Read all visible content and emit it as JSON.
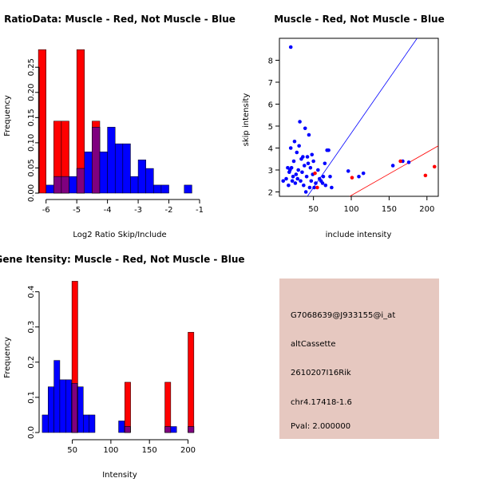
{
  "chart_data": [
    {
      "type": "bar",
      "title": "RatioData: Muscle - Red, Not Muscle - Blue",
      "xlabel": "Log2 Ratio Skip/Include",
      "ylabel": "Frequency",
      "xlim": [
        -6.2,
        -1.0
      ],
      "ylim": [
        0,
        0.29
      ],
      "xticks": [
        -6,
        -5,
        -4,
        -3,
        -2,
        -1
      ],
      "xtick_labels": [
        "-6",
        "-5",
        "-4",
        "-3",
        "-2",
        "-1"
      ],
      "yticks": [
        0.0,
        0.05,
        0.1,
        0.15,
        0.2,
        0.25
      ],
      "ytick_labels": [
        "0.00",
        "0.05",
        "0.10",
        "0.15",
        "0.20",
        "0.25"
      ],
      "bin_width": 0.25,
      "series": [
        {
          "name": "Muscle",
          "color": "#ff0000",
          "bins": [
            [
              -6.25,
              0.285
            ],
            [
              -5.75,
              0.143
            ],
            [
              -5.5,
              0.143
            ],
            [
              -5.0,
              0.285
            ],
            [
              -4.5,
              0.143
            ]
          ]
        },
        {
          "name": "Not Muscle",
          "color": "#0000ff",
          "bins": [
            [
              -6.0,
              0.016
            ],
            [
              -5.75,
              0.033
            ],
            [
              -5.5,
              0.033
            ],
            [
              -5.25,
              0.033
            ],
            [
              -5.0,
              0.049
            ],
            [
              -4.75,
              0.082
            ],
            [
              -4.5,
              0.131
            ],
            [
              -4.25,
              0.082
            ],
            [
              -4.0,
              0.131
            ],
            [
              -3.75,
              0.098
            ],
            [
              -3.5,
              0.098
            ],
            [
              -3.25,
              0.033
            ],
            [
              -3.0,
              0.066
            ],
            [
              -2.75,
              0.049
            ],
            [
              -2.5,
              0.016
            ],
            [
              -2.25,
              0.016
            ],
            [
              -1.5,
              0.016
            ]
          ]
        }
      ]
    },
    {
      "type": "scatter",
      "title": "Muscle - Red, Not Muscle - Blue",
      "xlabel": "include intensity",
      "ylabel": "skip intensity",
      "xlim": [
        5,
        215
      ],
      "ylim": [
        1.8,
        9.0
      ],
      "xticks": [
        50,
        100,
        150,
        200
      ],
      "xtick_labels": [
        "50",
        "100",
        "150",
        "200"
      ],
      "yticks": [
        2,
        3,
        4,
        5,
        6,
        7,
        8
      ],
      "ytick_labels": [
        "2",
        "3",
        "4",
        "5",
        "6",
        "7",
        "8"
      ],
      "lines": [
        {
          "name": "blue-diagonal",
          "color": "#0000ff",
          "points": [
            [
              42,
              1.8
            ],
            [
              187,
              9.0
            ]
          ]
        },
        {
          "name": "red-diagonal",
          "color": "#ff0000",
          "points": [
            [
              98,
              1.8
            ],
            [
              215,
              4.1
            ]
          ]
        }
      ],
      "series": [
        {
          "name": "Muscle",
          "color": "#ff0000",
          "points": [
            [
              52,
              2.85
            ],
            [
              55,
              2.2
            ],
            [
              101,
              2.65
            ],
            [
              165,
              3.4
            ],
            [
              198,
              2.75
            ],
            [
              210,
              3.15
            ]
          ]
        },
        {
          "name": "Not Muscle",
          "color": "#0000ff",
          "points": [
            [
              20,
              8.6
            ],
            [
              10,
              2.5
            ],
            [
              14,
              2.6
            ],
            [
              16,
              3.1
            ],
            [
              17,
              2.3
            ],
            [
              18,
              2.9
            ],
            [
              19,
              3.0
            ],
            [
              20,
              4.0
            ],
            [
              21,
              3.1
            ],
            [
              22,
              2.5
            ],
            [
              23,
              2.7
            ],
            [
              24,
              3.4
            ],
            [
              25,
              4.3
            ],
            [
              26,
              2.4
            ],
            [
              27,
              2.8
            ],
            [
              28,
              3.8
            ],
            [
              29,
              2.6
            ],
            [
              30,
              3.0
            ],
            [
              31,
              4.1
            ],
            [
              32,
              5.2
            ],
            [
              33,
              2.5
            ],
            [
              34,
              3.5
            ],
            [
              35,
              2.9
            ],
            [
              36,
              3.6
            ],
            [
              37,
              2.3
            ],
            [
              38,
              3.2
            ],
            [
              39,
              4.9
            ],
            [
              40,
              2.0
            ],
            [
              41,
              2.7
            ],
            [
              42,
              3.6
            ],
            [
              43,
              3.3
            ],
            [
              44,
              4.6
            ],
            [
              45,
              2.2
            ],
            [
              46,
              3.1
            ],
            [
              47,
              2.5
            ],
            [
              48,
              3.7
            ],
            [
              49,
              2.8
            ],
            [
              50,
              3.4
            ],
            [
              51,
              2.2
            ],
            [
              53,
              2.4
            ],
            [
              56,
              3.0
            ],
            [
              58,
              2.6
            ],
            [
              60,
              2.5
            ],
            [
              62,
              2.4
            ],
            [
              63,
              2.7
            ],
            [
              65,
              3.3
            ],
            [
              66,
              2.3
            ],
            [
              68,
              3.9
            ],
            [
              70,
              3.9
            ],
            [
              72,
              2.7
            ],
            [
              74,
              2.2
            ],
            [
              96,
              2.95
            ],
            [
              110,
              2.7
            ],
            [
              116,
              2.85
            ],
            [
              155,
              3.2
            ],
            [
              168,
              3.4
            ],
            [
              176,
              3.35
            ]
          ]
        }
      ]
    },
    {
      "type": "bar",
      "title": "Gene Itensity: Muscle - Red, Not Muscle - Blue",
      "xlabel": "Intensity",
      "ylabel": "Frequency",
      "xlim": [
        8,
        215
      ],
      "ylim": [
        0,
        0.44
      ],
      "xticks": [
        50,
        100,
        150,
        200
      ],
      "xtick_labels": [
        "50",
        "100",
        "150",
        "200"
      ],
      "yticks": [
        0.0,
        0.1,
        0.2,
        0.3,
        0.4
      ],
      "ytick_labels": [
        "0.0",
        "0.1",
        "0.2",
        "0.3",
        "0.4"
      ],
      "bin_width": 7.6,
      "series": [
        {
          "name": "Muscle",
          "color": "#ff0000",
          "bins": [
            [
              49.5,
              0.43
            ],
            [
              118,
              0.143
            ],
            [
              170,
              0.143
            ],
            [
              200,
              0.285
            ]
          ]
        },
        {
          "name": "Not Muscle",
          "color": "#0000ff",
          "bins": [
            [
              11,
              0.05
            ],
            [
              18.6,
              0.13
            ],
            [
              26.2,
              0.205
            ],
            [
              33.8,
              0.15
            ],
            [
              41.4,
              0.15
            ],
            [
              49.0,
              0.14
            ],
            [
              56.6,
              0.13
            ],
            [
              64.2,
              0.05
            ],
            [
              71.8,
              0.05
            ],
            [
              110,
              0.033
            ],
            [
              117.6,
              0.017
            ],
            [
              170,
              0.017
            ],
            [
              177.6,
              0.017
            ],
            [
              200,
              0.017
            ]
          ]
        }
      ]
    }
  ],
  "info": {
    "probe": "G7068639@J933155@i_at",
    "event_type": "altCassette",
    "gene": "2610207I16Rik",
    "location": "chr4.17418-1.6",
    "pval": "Pval: 2.000000",
    "pval_color": "#8b0000",
    "background": "#e6c8c0"
  },
  "colors": {
    "red": "#ff0000",
    "blue": "#0000ff",
    "overlap": "#7f007f"
  }
}
